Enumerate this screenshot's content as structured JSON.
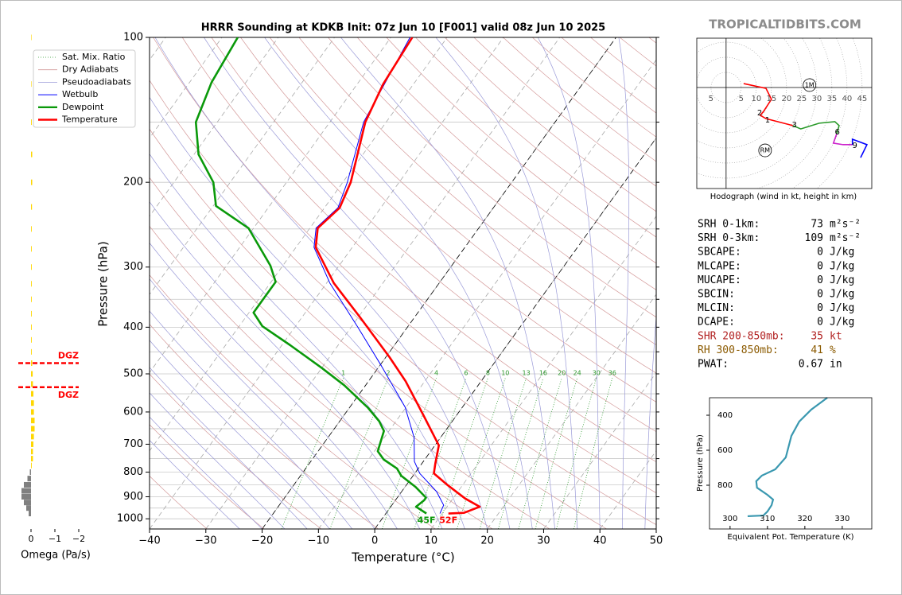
{
  "site": "TROPICALTIDBITS.COM",
  "chart_data": [
    {
      "type": "skewt",
      "title": "HRRR Sounding at KDKB Init: 07z Jun 10 [F001] valid 08z Jun 10 2025",
      "xlabel": "Temperature (°C)",
      "ylabel": "Pressure (hPa)",
      "xlim": [
        -40,
        50
      ],
      "xticks": [
        {
          "value": -40,
          "label": "−40"
        },
        {
          "value": -30,
          "label": "−30"
        },
        {
          "value": -20,
          "label": "−20"
        },
        {
          "value": -10,
          "label": "−10"
        },
        0,
        10,
        20,
        30,
        40,
        50
      ],
      "ylim": [
        1050,
        100
      ],
      "log_y": true,
      "yticks": [
        100,
        200,
        300,
        400,
        500,
        600,
        700,
        800,
        900,
        1000
      ],
      "yminor": [
        150,
        250,
        350,
        450,
        550,
        650,
        750,
        850,
        950
      ],
      "highlight_isotherms": [
        -20,
        0
      ],
      "mixing_ratios": [
        1,
        2,
        4,
        6,
        8,
        10,
        13,
        16,
        20,
        24,
        30,
        36
      ],
      "legend": {
        "position": "upper left",
        "entries": [
          {
            "name": "Sat. Mix. Ratio",
            "color": "#2e9a2e"
          },
          {
            "name": "Dry Adiabats",
            "color": "#d49a9a"
          },
          {
            "name": "Pseudoadiabats",
            "color": "#9a9ad8"
          }
        ]
      },
      "series": [
        {
          "name": "Wetbulb",
          "color": "#0000ff",
          "x": [
            -56.6,
            -54,
            -49.2,
            -47.6,
            -48.9,
            -46.8,
            -39.4,
            -28.8,
            -19.7,
            -10.2,
            -4.7,
            -1.6,
            0.9,
            6.2,
            9.2,
            9.6
          ],
          "y": [
            100,
            150,
            200,
            226,
            249,
            273,
            324,
            400,
            481,
            586,
            678,
            760,
            805,
            878,
            937,
            975
          ]
        },
        {
          "name": "Dewpoint",
          "color": "#0a990a",
          "surface_label": "45F",
          "x": [
            -87.2,
            -86.1,
            -83.8,
            -79.2,
            -73,
            -69.5,
            -60.9,
            -52.2,
            -49.2,
            -49.2,
            -45.9,
            -38.5,
            -30,
            -23.8,
            -16.7,
            -13,
            -10.9,
            -9.4,
            -7.3,
            -3.8,
            -2.1,
            1.9,
            5.1,
            5.1,
            4.5,
            7.2
          ],
          "y": [
            100,
            124,
            150,
            175,
            200,
            224,
            249,
            298,
            322,
            373,
            398,
            436,
            486,
            528,
            588,
            627,
            657,
            724,
            753,
            786,
            814,
            859,
            904,
            915,
            944,
            975
          ]
        },
        {
          "name": "Temperature",
          "color": "#ff0000",
          "surface_label": "52F",
          "x": [
            -56.2,
            -55.4,
            -53.7,
            -48.6,
            -47.3,
            -48.6,
            -46.5,
            -38.7,
            -29.6,
            -19.3,
            -13.4,
            -5.7,
            0.7,
            2.4,
            3.4,
            7.4,
            12.2,
            15.8,
            13.8,
            11.1
          ],
          "y": [
            100,
            125,
            150,
            200,
            226,
            249,
            273,
            324,
            382,
            462,
            518,
            612,
            704,
            768,
            805,
            852,
            908,
            944,
            972,
            975
          ]
        }
      ]
    },
    {
      "type": "omega-bar",
      "xlabel": "Omega (Pa/s)",
      "xlim": [
        0.5,
        -2
      ],
      "xticks": [
        0,
        {
          "value": -1,
          "label": "−1"
        },
        {
          "value": -2,
          "label": "−2"
        }
      ],
      "ylim": [
        1050,
        100
      ],
      "log_y": true,
      "colors": {
        "negative": "#ffd700",
        "positive": "#808080"
      },
      "y": [
        100,
        125,
        150,
        175,
        200,
        225,
        250,
        275,
        300,
        325,
        350,
        375,
        400,
        425,
        450,
        475,
        500,
        525,
        550,
        575,
        600,
        625,
        650,
        675,
        700,
        725,
        750,
        775,
        800,
        825,
        850,
        875,
        900,
        925,
        950,
        975,
        1000
      ],
      "values": [
        -0.02,
        -0.02,
        -0.03,
        -0.05,
        -0.05,
        -0.04,
        -0.03,
        -0.03,
        -0.03,
        -0.03,
        -0.03,
        -0.03,
        -0.03,
        -0.03,
        -0.03,
        -0.05,
        -0.07,
        -0.08,
        -0.1,
        -0.12,
        -0.12,
        -0.15,
        -0.15,
        -0.12,
        -0.1,
        -0.08,
        -0.08,
        -0.03,
        0.05,
        0.15,
        0.3,
        0.4,
        0.4,
        0.3,
        0.2,
        0.1,
        0
      ],
      "dgz": [
        {
          "pressure": 475,
          "label": "DGZ",
          "color": "#ff0000"
        },
        {
          "pressure": 533,
          "label": "DGZ",
          "color": "#ff0000"
        }
      ]
    },
    {
      "type": "hodograph",
      "caption": "Hodograph (wind in kt, height in km)",
      "xlim": [
        -9.7,
        48.2
      ],
      "ylim": [
        -33.4,
        16.3
      ],
      "xticks": [
        {
          "value": -5,
          "label": "5"
        },
        5,
        10,
        15,
        20,
        25,
        30,
        35,
        40,
        45
      ],
      "series": [
        {
          "color": "#ff0000",
          "x": [
            5.8,
            13.2,
            15,
            12.4,
            11.3,
            13.2,
            22.1
          ],
          "y": [
            1.3,
            -0.3,
            -3.9,
            -7.9,
            -9.2,
            -10.3,
            -12.6
          ]
        },
        {
          "color": "#2a9a2a",
          "x": [
            22.1,
            24.7,
            30.8,
            36,
            37.4,
            36.6
          ],
          "y": [
            -12.6,
            -13.7,
            -11.8,
            -11.3,
            -12.6,
            -15.3
          ]
        },
        {
          "color": "#cc22cc",
          "x": [
            36.6,
            35.5,
            38.7,
            41.8
          ],
          "y": [
            -15.3,
            -18.4,
            -18.9,
            -18.9
          ]
        },
        {
          "color": "#0000ff",
          "x": [
            41.8,
            41.8,
            46.6,
            44.5
          ],
          "y": [
            -18.9,
            -17.1,
            -18.9,
            -23.2
          ]
        }
      ],
      "height_labels": [
        {
          "label": "1",
          "x": 13.7,
          "y": -10.8
        },
        {
          "label": "2",
          "x": 11.1,
          "y": -8.4
        },
        {
          "label": "3",
          "x": 22.6,
          "y": -12.4
        },
        {
          "label": "6",
          "x": 36.8,
          "y": -14.7
        },
        {
          "label": "9",
          "x": 42.6,
          "y": -19.2
        }
      ],
      "storm_motion": [
        {
          "label": "1M",
          "x": 27.6,
          "y": 0.8
        },
        {
          "label": "RM",
          "x": 12.9,
          "y": -20.8
        }
      ]
    },
    {
      "type": "line",
      "xlabel": "Equivalent Pot. Temperature (K)",
      "ylabel": "Pressure (hPa)",
      "color": "#3a98b0",
      "xlim": [
        294.5,
        337.9
      ],
      "xticks": [
        300,
        310,
        320,
        330
      ],
      "ylim": [
        1050,
        300
      ],
      "yticks": [
        400,
        600,
        800
      ],
      "x": [
        326,
        321.7,
        318.5,
        316.4,
        314.9,
        312.1,
        308.5,
        307,
        307.2,
        310,
        311.5,
        311.1,
        310,
        308.9,
        304.7
      ],
      "y": [
        300,
        368,
        436,
        518,
        641,
        709,
        745,
        777,
        814,
        855,
        882,
        914,
        950,
        973,
        977
      ]
    }
  ],
  "stats": [
    {
      "label": "SRH 0-1km:",
      "value": 73,
      "unit": "m²s⁻²"
    },
    {
      "label": "SRH 0-3km:",
      "value": 109,
      "unit": "m²s⁻²"
    },
    {
      "label": "SBCAPE:",
      "value": 0,
      "unit": "J/kg"
    },
    {
      "label": "MLCAPE:",
      "value": 0,
      "unit": "J/kg"
    },
    {
      "label": "MUCAPE:",
      "value": 0,
      "unit": "J/kg"
    },
    {
      "label": "SBCIN:",
      "value": 0,
      "unit": "J/kg"
    },
    {
      "label": "MLCIN:",
      "value": 0,
      "unit": "J/kg"
    },
    {
      "label": "DCAPE:",
      "value": 0,
      "unit": "J/kg"
    },
    {
      "label": "SHR 200-850mb:",
      "value": 35,
      "unit": "kt",
      "color": "#b22222"
    },
    {
      "label": "RH 300-850mb:",
      "value": 41,
      "unit": "%",
      "color": "#8b5a00"
    },
    {
      "label": "PWAT:",
      "value": 0.67,
      "unit": "in"
    }
  ]
}
